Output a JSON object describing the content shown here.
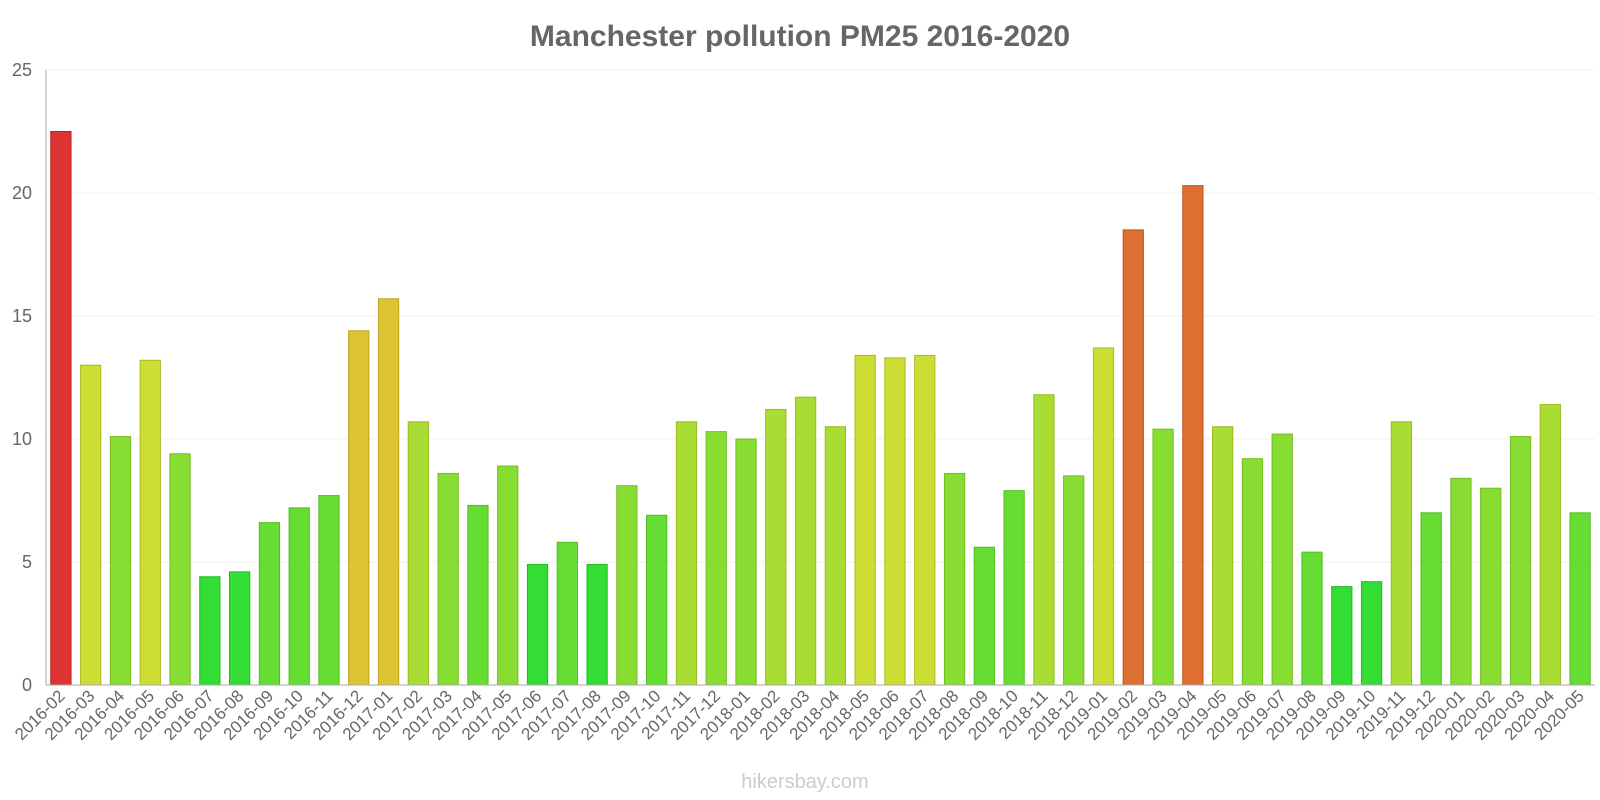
{
  "chart_data": {
    "type": "bar",
    "title": "Manchester pollution PM25 2016-2020",
    "xlabel": "",
    "ylabel": "",
    "ylim": [
      0,
      25
    ],
    "yticks": [
      "0",
      "5",
      "10",
      "15",
      "20",
      "25"
    ],
    "grid": true,
    "credit": "hikersbay.com",
    "categories": [
      "2016-02",
      "2016-03",
      "2016-04",
      "2016-05",
      "2016-06",
      "2016-07",
      "2016-08",
      "2016-09",
      "2016-10",
      "2016-11",
      "2016-12",
      "2017-01",
      "2017-02",
      "2017-03",
      "2017-04",
      "2017-05",
      "2017-06",
      "2017-07",
      "2017-08",
      "2017-09",
      "2017-10",
      "2017-11",
      "2017-12",
      "2018-01",
      "2018-02",
      "2018-03",
      "2018-04",
      "2018-05",
      "2018-06",
      "2018-07",
      "2018-08",
      "2018-09",
      "2018-10",
      "2018-11",
      "2018-12",
      "2019-01",
      "2019-02",
      "2019-03",
      "2019-04",
      "2019-05",
      "2019-06",
      "2019-07",
      "2019-08",
      "2019-09",
      "2019-10",
      "2019-11",
      "2019-12",
      "2020-01",
      "2020-02",
      "2020-03",
      "2020-04",
      "2020-05"
    ],
    "values": [
      22.5,
      13.0,
      10.1,
      13.2,
      9.4,
      4.4,
      4.6,
      6.6,
      7.2,
      7.7,
      14.4,
      15.7,
      10.7,
      8.6,
      7.3,
      8.9,
      4.9,
      5.8,
      4.9,
      8.1,
      6.9,
      10.7,
      10.3,
      10.0,
      11.2,
      11.7,
      10.5,
      13.4,
      13.3,
      13.4,
      8.6,
      5.6,
      7.9,
      11.8,
      8.5,
      13.7,
      18.5,
      10.4,
      20.3,
      10.5,
      9.2,
      10.2,
      5.4,
      4.0,
      4.2,
      10.7,
      7.0,
      8.4,
      8.0,
      10.1,
      11.4,
      7.0
    ],
    "colors": {
      "title": "#666666",
      "axis_text": "#666666",
      "credit": "#cccccc",
      "grid": "#f2f2f2",
      "axis": "#aaaaaa",
      "scale": [
        {
          "max": 5,
          "fill": "#33dd33",
          "border": "#22bb22"
        },
        {
          "max": 8,
          "fill": "#66dd33",
          "border": "#55bb22"
        },
        {
          "max": 10.5,
          "fill": "#88dd33",
          "border": "#77bb22"
        },
        {
          "max": 12,
          "fill": "#aadd33",
          "border": "#99bb22"
        },
        {
          "max": 14,
          "fill": "#ccdd33",
          "border": "#aabb22"
        },
        {
          "max": 17,
          "fill": "#ddc433",
          "border": "#bba422"
        },
        {
          "max": 21,
          "fill": "#dd6f33",
          "border": "#bb5522"
        },
        {
          "max": 100,
          "fill": "#dd3333",
          "border": "#bb2222"
        }
      ]
    }
  }
}
